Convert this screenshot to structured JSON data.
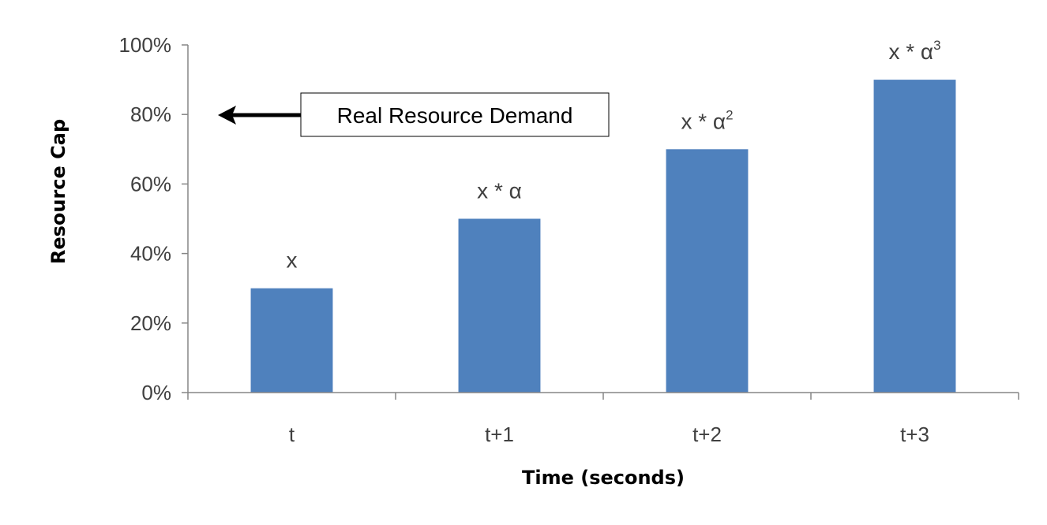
{
  "chart_data": {
    "type": "bar",
    "categories": [
      "t",
      "t+1",
      "t+2",
      "t+3"
    ],
    "values": [
      30,
      50,
      70,
      90
    ],
    "xlabel": "Time (seconds)",
    "ylabel": "Resource Cap",
    "ylim": [
      0,
      100
    ],
    "yticks": [
      0,
      20,
      40,
      60,
      80,
      100
    ],
    "ytick_labels": [
      "0%",
      "20%",
      "40%",
      "60%",
      "80%",
      "100%"
    ],
    "grid": false,
    "bar_color": "#4f81bd",
    "data_labels": [
      {
        "base": "x",
        "sup": ""
      },
      {
        "base": "x  * α",
        "sup": ""
      },
      {
        "base": "x  * α",
        "sup": "2"
      },
      {
        "base": "x  * α",
        "sup": "3"
      }
    ],
    "annotation": {
      "text": "Real Resource Demand",
      "y_value": 80
    }
  }
}
